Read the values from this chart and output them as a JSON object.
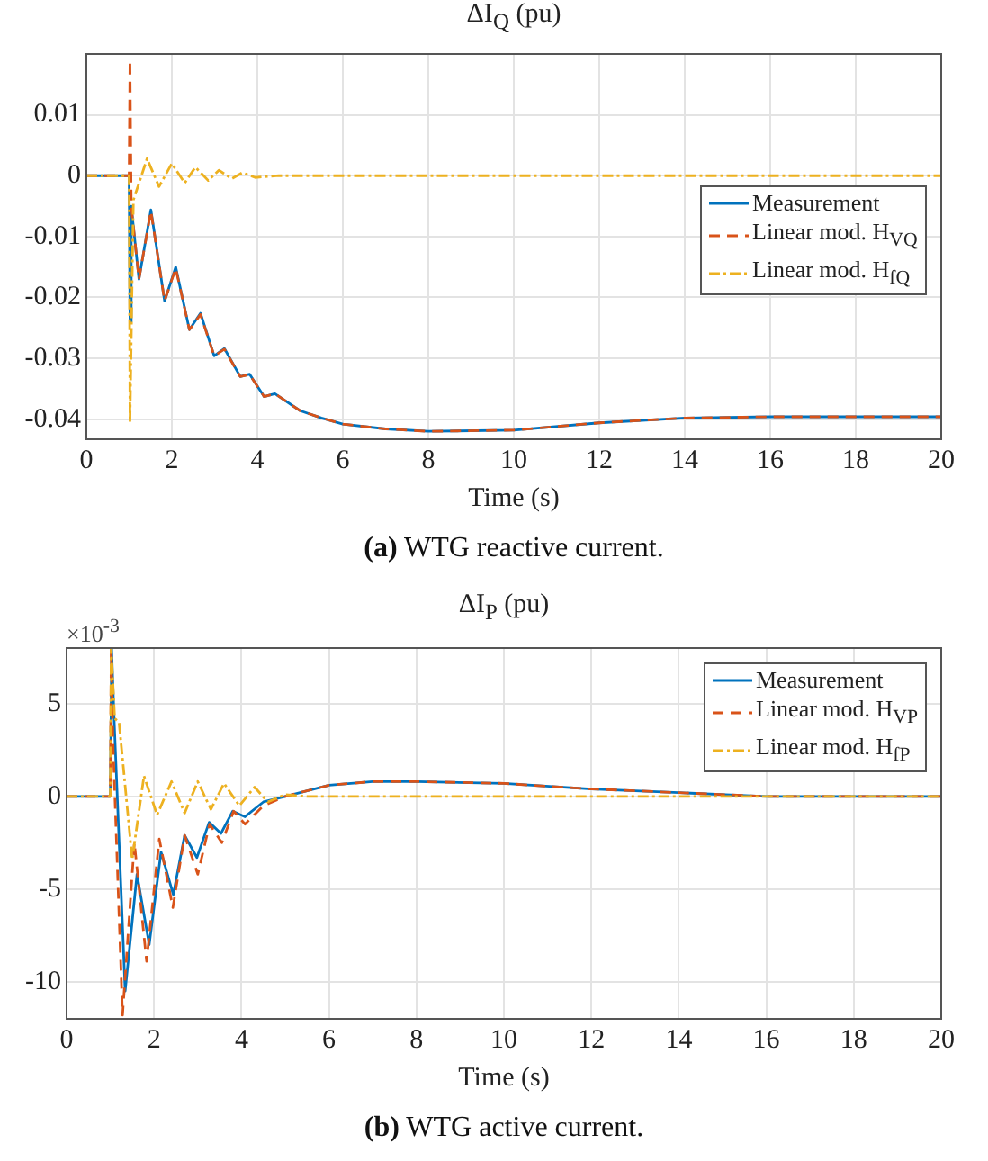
{
  "chart_data": [
    {
      "type": "line",
      "title": "ΔI$_{Q}$ (pu)",
      "xlabel": "Time (s)",
      "xlim": [
        0,
        20
      ],
      "xticks": [
        0,
        2,
        4,
        6,
        8,
        10,
        12,
        14,
        16,
        18,
        20
      ],
      "ylim": [
        -0.0433,
        0.02
      ],
      "yticks": [
        -0.04,
        -0.03,
        -0.02,
        -0.01,
        0,
        0.01
      ],
      "grid": true,
      "legend": "right",
      "annotations": [
        "(a) WTG reactive current."
      ],
      "series": [
        {
          "name": "Measurement",
          "color": "#0072bd",
          "line_style": "solid",
          "x": [
            0,
            1,
            1.02,
            1.05,
            1.23,
            1.51,
            1.83,
            2.09,
            2.41,
            2.67,
            2.99,
            3.23,
            3.6,
            3.82,
            4.16,
            4.41,
            5,
            5.5,
            6,
            7,
            8,
            10,
            12,
            14,
            16,
            20
          ],
          "values": [
            0,
            0,
            -0.024,
            -0.005,
            -0.017,
            -0.0056,
            -0.0206,
            -0.015,
            -0.0253,
            -0.0226,
            -0.0296,
            -0.0284,
            -0.033,
            -0.0326,
            -0.0363,
            -0.0358,
            -0.0386,
            -0.0398,
            -0.0408,
            -0.0416,
            -0.042,
            -0.0418,
            -0.0406,
            -0.0398,
            -0.0396,
            -0.0396
          ]
        },
        {
          "name": "Linear mod. H$_{VQ}$",
          "color": "#d95319",
          "line_style": "dashed",
          "x": [
            0,
            1,
            1.02,
            1.05,
            1.23,
            1.51,
            1.83,
            2.09,
            2.41,
            2.67,
            2.99,
            3.23,
            3.6,
            3.82,
            4.16,
            4.41,
            5,
            5.5,
            6,
            7,
            8,
            10,
            12,
            14,
            16,
            20
          ],
          "values": [
            0,
            0,
            0.019,
            -0.005,
            -0.017,
            -0.0058,
            -0.0206,
            -0.0152,
            -0.0253,
            -0.0228,
            -0.0296,
            -0.0285,
            -0.033,
            -0.0327,
            -0.0363,
            -0.0358,
            -0.0386,
            -0.0398,
            -0.0408,
            -0.0416,
            -0.042,
            -0.0418,
            -0.0406,
            -0.0398,
            -0.0396,
            -0.0396
          ]
        },
        {
          "name": "Linear mod. H$_{fQ}$",
          "color": "#edb120",
          "line_style": "dotted",
          "x": [
            0,
            1,
            1.02,
            1.1,
            1.42,
            1.7,
            2.0,
            2.3,
            2.55,
            2.85,
            3.1,
            3.4,
            3.65,
            3.95,
            4.5,
            20
          ],
          "values": [
            0,
            0,
            -0.0405,
            -0.004,
            0.0028,
            -0.0018,
            0.002,
            -0.0012,
            0.0014,
            -0.0008,
            0.0009,
            -0.0005,
            0.0005,
            -0.0003,
            0,
            0
          ]
        }
      ]
    },
    {
      "type": "line",
      "title": "ΔI$_{P}$ (pu)",
      "xlabel": "Time (s)",
      "xlim": [
        0,
        20
      ],
      "xticks": [
        0,
        2,
        4,
        6,
        8,
        10,
        12,
        14,
        16,
        18,
        20
      ],
      "ylim": [
        -12,
        8
      ],
      "yticks": [
        -10,
        -5,
        0,
        5
      ],
      "grid": true,
      "legend": "top right",
      "annotations": [
        "×10$^{-3}$",
        "(b) WTG active current."
      ],
      "series": [
        {
          "name": "Measurement",
          "color": "#0072bd",
          "line_style": "solid",
          "x": [
            0,
            1,
            1.03,
            1.09,
            1.34,
            1.61,
            1.89,
            2.16,
            2.44,
            2.7,
            2.98,
            3.26,
            3.53,
            3.8,
            4.08,
            4.5,
            5,
            6,
            7,
            8,
            10,
            12,
            14,
            16,
            20
          ],
          "values": [
            0,
            0,
            8,
            4,
            -10.5,
            -4.2,
            -8,
            -3,
            -5.3,
            -2.1,
            -3.3,
            -1.4,
            -2,
            -0.8,
            -1.1,
            -0.3,
            0,
            0.6,
            0.8,
            0.8,
            0.7,
            0.4,
            0.2,
            0,
            0
          ]
        },
        {
          "name": "Linear mod. H$_{VP}$",
          "color": "#d95319",
          "line_style": "dashed",
          "x": [
            0,
            1,
            1.02,
            1.06,
            1.28,
            1.55,
            1.83,
            2.12,
            2.43,
            2.7,
            3.0,
            3.27,
            3.55,
            3.82,
            4.08,
            4.5,
            5,
            6,
            7,
            8,
            10,
            12,
            14,
            16,
            20
          ],
          "values": [
            0,
            0,
            8,
            3,
            -11.8,
            -2.5,
            -8.9,
            -2.3,
            -6,
            -2.1,
            -4.2,
            -1.5,
            -2.5,
            -0.8,
            -1.5,
            -0.5,
            0,
            0.6,
            0.8,
            0.8,
            0.7,
            0.4,
            0.2,
            0,
            0
          ]
        },
        {
          "name": "Linear mod. H$_{fP}$",
          "color": "#edb120",
          "line_style": "dotted",
          "x": [
            0,
            1,
            1.02,
            1.1,
            1.2,
            1.5,
            1.77,
            2.07,
            2.4,
            2.7,
            3.0,
            3.3,
            3.6,
            3.95,
            4.3,
            4.6,
            5,
            5.5,
            20
          ],
          "values": [
            0,
            0,
            8,
            4.2,
            4,
            -3.4,
            1.1,
            -1,
            0.8,
            -0.9,
            0.8,
            -0.7,
            0.7,
            -0.5,
            0.5,
            -0.3,
            0.1,
            0,
            0
          ]
        }
      ]
    }
  ]
}
